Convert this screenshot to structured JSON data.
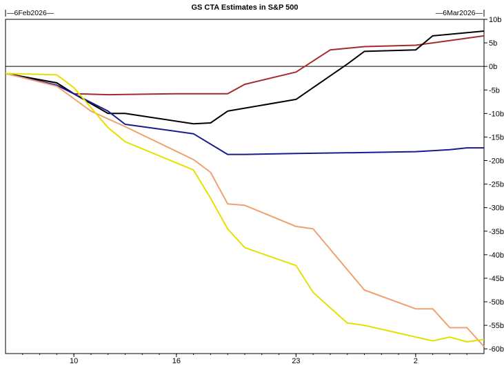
{
  "chart_data": {
    "type": "line",
    "title": "GS CTA Estimates in S&P 500",
    "start_label": "6Feb2026",
    "end_label": "6Mar2026",
    "x_ticks": [
      {
        "label": "10",
        "x": 4
      },
      {
        "label": "16",
        "x": 10
      },
      {
        "label": "23",
        "x": 17
      },
      {
        "label": "2",
        "x": 24
      }
    ],
    "y_ticks": [
      10,
      5,
      0,
      -5,
      -10,
      -15,
      -20,
      -25,
      -30,
      -35,
      -40,
      -45,
      -50,
      -55,
      -60
    ],
    "y_tick_suffix": "b",
    "xlim": [
      0,
      28
    ],
    "ylim": [
      -61,
      10
    ],
    "grid": false,
    "series": [
      {
        "color": "#a52a2a",
        "x": [
          0,
          3,
          4,
          6,
          10,
          13,
          14,
          17,
          19,
          21,
          24,
          28
        ],
        "y": [
          -1.5,
          -3.5,
          -5.8,
          -6,
          -5.8,
          -5.8,
          -3.8,
          -1.2,
          3.5,
          4.2,
          4.5,
          6.5
        ]
      },
      {
        "color": "#000000",
        "x": [
          0,
          3,
          4,
          6,
          7,
          11,
          12,
          13,
          17,
          20,
          21,
          24,
          25,
          28
        ],
        "y": [
          -1.5,
          -3.5,
          -5.8,
          -10,
          -10,
          -12.2,
          -12,
          -9.5,
          -7,
          0.5,
          3.2,
          3.5,
          6.5,
          7.5
        ]
      },
      {
        "color": "#1a1a8c",
        "x": [
          0,
          3,
          6,
          7,
          11,
          13,
          14,
          17,
          21,
          24,
          26,
          27,
          28
        ],
        "y": [
          -1.5,
          -4,
          -9.5,
          -12.3,
          -14.3,
          -18.7,
          -18.7,
          -18.5,
          -18.3,
          -18.1,
          -17.7,
          -17.3,
          -17.3
        ]
      },
      {
        "color": "#f0a070",
        "x": [
          0,
          3,
          5,
          7,
          11,
          12,
          13,
          14,
          17,
          18,
          21,
          24,
          25,
          26,
          27,
          28
        ],
        "y": [
          -1.5,
          -4.2,
          -9.5,
          -12.8,
          -19.8,
          -22.5,
          -29.2,
          -29.5,
          -34,
          -34.5,
          -47.5,
          -51.5,
          -51.5,
          -55.5,
          -55.5,
          -59.5
        ]
      },
      {
        "color": "#e6e000",
        "x": [
          0,
          3,
          4,
          6,
          7,
          11,
          12,
          13,
          14,
          17,
          18,
          20,
          21,
          25,
          26,
          27,
          28
        ],
        "y": [
          -1.5,
          -1.8,
          -4.5,
          -13,
          -16,
          -22,
          -28,
          -34.5,
          -38.5,
          -42.3,
          -48,
          -54.5,
          -55,
          -58.3,
          -57.5,
          -58.5,
          -58
        ]
      }
    ]
  }
}
